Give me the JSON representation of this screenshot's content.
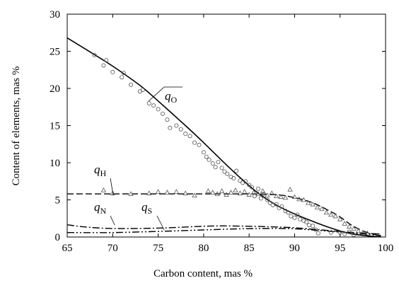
{
  "chart_data": {
    "type": "scatter",
    "xlabel": "Carbon content, mas %",
    "ylabel": "Content of elements, mas %",
    "xlim": [
      65,
      100
    ],
    "ylim": [
      0,
      30
    ],
    "xticks": [
      "65",
      "70",
      "75",
      "80",
      "85",
      "90",
      "95",
      "100"
    ],
    "yticks": [
      "0",
      "5",
      "10",
      "15",
      "20",
      "25",
      "30"
    ],
    "grid": false,
    "series": [
      {
        "name": "q_O",
        "label_main": "q",
        "label_sub": "O",
        "marker": "circle",
        "line_style": "solid",
        "fit": [
          [
            65,
            26.8
          ],
          [
            67,
            25.3
          ],
          [
            70,
            23.0
          ],
          [
            73,
            20.4
          ],
          [
            75,
            18.3
          ],
          [
            78,
            15.0
          ],
          [
            80,
            12.7
          ],
          [
            82,
            10.3
          ],
          [
            84,
            8.0
          ],
          [
            86,
            5.9
          ],
          [
            88,
            4.3
          ],
          [
            90,
            3.1
          ],
          [
            92,
            2.1
          ],
          [
            94,
            1.2
          ],
          [
            96,
            0.5
          ],
          [
            98,
            0.15
          ],
          [
            99.5,
            0.05
          ]
        ],
        "points": [
          [
            68,
            24.5
          ],
          [
            69,
            23.1
          ],
          [
            69.3,
            23.8
          ],
          [
            70,
            22.2
          ],
          [
            71,
            21.5
          ],
          [
            71.2,
            22.1
          ],
          [
            72,
            20.5
          ],
          [
            73,
            19.6
          ],
          [
            73.3,
            19.8
          ],
          [
            74,
            18.0
          ],
          [
            74.5,
            17.7
          ],
          [
            75,
            17.2
          ],
          [
            75.5,
            16.6
          ],
          [
            76,
            15.8
          ],
          [
            76.3,
            14.7
          ],
          [
            77,
            15.0
          ],
          [
            77.5,
            14.5
          ],
          [
            78,
            13.9
          ],
          [
            78.5,
            13.6
          ],
          [
            79,
            12.7
          ],
          [
            79.5,
            12.4
          ],
          [
            80,
            11.4
          ],
          [
            80.3,
            10.8
          ],
          [
            80.6,
            10.4
          ],
          [
            81,
            9.9
          ],
          [
            81.3,
            9.4
          ],
          [
            81.6,
            10.1
          ],
          [
            82,
            9.3
          ],
          [
            82.3,
            8.8
          ],
          [
            82.6,
            8.5
          ],
          [
            83,
            8.1
          ],
          [
            83.3,
            7.9
          ],
          [
            83.6,
            8.9
          ],
          [
            84,
            7.6
          ],
          [
            84.3,
            7.3
          ],
          [
            84.6,
            7.5
          ],
          [
            85,
            7.0
          ],
          [
            85.3,
            6.7
          ],
          [
            85.6,
            5.5
          ],
          [
            86,
            6.5
          ],
          [
            86.3,
            5.2
          ],
          [
            86.6,
            5.8
          ],
          [
            87,
            5.0
          ],
          [
            87.3,
            4.6
          ],
          [
            87.6,
            4.3
          ],
          [
            88,
            4.4
          ],
          [
            88.3,
            3.9
          ],
          [
            88.6,
            4.1
          ],
          [
            89,
            3.5
          ],
          [
            89.3,
            3.3
          ],
          [
            89.6,
            2.8
          ],
          [
            90,
            2.6
          ],
          [
            90.3,
            3.0
          ],
          [
            90.6,
            2.4
          ],
          [
            91,
            2.2
          ],
          [
            91.3,
            2.0
          ],
          [
            91.6,
            1.6
          ],
          [
            92,
            1.5
          ],
          [
            92.3,
            1.0
          ],
          [
            92.6,
            0.5
          ],
          [
            94,
            0.6
          ],
          [
            95,
            0.6
          ],
          [
            95.5,
            0.4
          ],
          [
            96,
            0.7
          ],
          [
            96.5,
            0.3
          ]
        ]
      },
      {
        "name": "q_H",
        "label_main": "q",
        "label_sub": "H",
        "marker": "triangle",
        "line_style": "dashed",
        "fit": [
          [
            65,
            5.8
          ],
          [
            70,
            5.8
          ],
          [
            75,
            5.8
          ],
          [
            80,
            5.8
          ],
          [
            85,
            5.8
          ],
          [
            88,
            5.7
          ],
          [
            90,
            5.3
          ],
          [
            92,
            4.6
          ],
          [
            94,
            3.4
          ],
          [
            95,
            2.7
          ],
          [
            96,
            1.8
          ],
          [
            97,
            1.1
          ],
          [
            98,
            0.6
          ],
          [
            99,
            0.3
          ]
        ],
        "points": [
          [
            69,
            6.3
          ],
          [
            70,
            5.9
          ],
          [
            72,
            5.8
          ],
          [
            74,
            5.9
          ],
          [
            75,
            6.1
          ],
          [
            76,
            6.0
          ],
          [
            77,
            6.1
          ],
          [
            78,
            5.9
          ],
          [
            79,
            5.6
          ],
          [
            80.5,
            6.2
          ],
          [
            81,
            6.0
          ],
          [
            81.5,
            5.8
          ],
          [
            82,
            6.2
          ],
          [
            82.5,
            5.7
          ],
          [
            83,
            6.0
          ],
          [
            83.5,
            6.3
          ],
          [
            84,
            5.9
          ],
          [
            84.5,
            6.1
          ],
          [
            85,
            5.7
          ],
          [
            85.5,
            6.0
          ],
          [
            86,
            5.8
          ],
          [
            86.5,
            6.2
          ],
          [
            87,
            5.6
          ],
          [
            87.5,
            5.9
          ],
          [
            88,
            5.5
          ],
          [
            88.5,
            5.4
          ],
          [
            89,
            5.3
          ],
          [
            89.5,
            6.4
          ],
          [
            90,
            5.4
          ],
          [
            90.5,
            5.1
          ],
          [
            91,
            5.0
          ],
          [
            91.5,
            4.6
          ],
          [
            92,
            4.4
          ],
          [
            92.5,
            4.0
          ],
          [
            93,
            3.8
          ],
          [
            93.5,
            3.3
          ],
          [
            94,
            3.0
          ],
          [
            94.5,
            2.8
          ],
          [
            95,
            2.4
          ],
          [
            95.5,
            1.8
          ],
          [
            96,
            1.4
          ],
          [
            96.5,
            1.1
          ],
          [
            97,
            0.8
          ],
          [
            97.5,
            0.6
          ],
          [
            98,
            0.5
          ]
        ]
      },
      {
        "name": "q_N",
        "label_main": "q",
        "label_sub": "N",
        "marker": "none",
        "line_style": "dashdot",
        "fit": [
          [
            65,
            1.65
          ],
          [
            67,
            1.35
          ],
          [
            70,
            1.15
          ],
          [
            75,
            1.2
          ],
          [
            80,
            1.45
          ],
          [
            82,
            1.5
          ],
          [
            85,
            1.45
          ],
          [
            88,
            1.35
          ],
          [
            90,
            1.25
          ],
          [
            92,
            1.05
          ],
          [
            94,
            0.85
          ],
          [
            96,
            0.65
          ],
          [
            98,
            0.5
          ],
          [
            99.5,
            0.4
          ]
        ]
      },
      {
        "name": "q_S",
        "label_main": "q",
        "label_sub": "S",
        "marker": "none",
        "line_style": "dashdotdot",
        "fit": [
          [
            65,
            0.6
          ],
          [
            70,
            0.6
          ],
          [
            75,
            0.75
          ],
          [
            80,
            0.95
          ],
          [
            84,
            1.1
          ],
          [
            88,
            1.15
          ],
          [
            90,
            1.1
          ],
          [
            92,
            0.95
          ],
          [
            94,
            0.75
          ],
          [
            96,
            0.55
          ],
          [
            98,
            0.35
          ],
          [
            99.5,
            0.2
          ]
        ]
      }
    ]
  }
}
